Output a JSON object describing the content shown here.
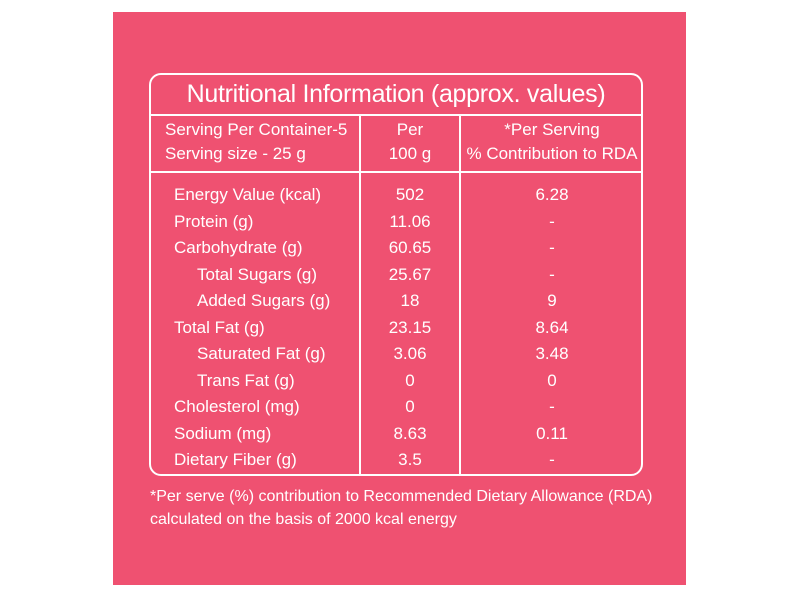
{
  "title": "Nutritional Information (approx. values)",
  "header": {
    "serving": [
      "Serving Per Container-5",
      "Serving size - 25 g"
    ],
    "per": [
      "Per",
      "100 g"
    ],
    "rda": [
      "*Per Serving",
      "% Contribution to RDA"
    ]
  },
  "nutrients": [
    {
      "name": "Energy Value (kcal)",
      "per_100g": 502,
      "rda": 6.28
    },
    {
      "name": "Protein (g)",
      "per_100g": 11.06,
      "rda": "-"
    },
    {
      "name": "Carbohydrate (g)",
      "per_100g": 60.65,
      "rda": "-",
      "sub": [
        {
          "name": "Total Sugars (g)",
          "per_100g": 25.67,
          "rda": "-"
        },
        {
          "name": "Added Sugars (g)",
          "per_100g": 18,
          "rda": 9
        }
      ]
    },
    {
      "name": "Total Fat (g)",
      "per_100g": 23.15,
      "rda": 8.64,
      "sub": [
        {
          "name": "Saturated Fat (g)",
          "per_100g": 3.06,
          "rda": 3.48
        },
        {
          "name": "Trans Fat (g)",
          "per_100g": 0,
          "rda": 0
        }
      ]
    },
    {
      "name": "Cholesterol (mg)",
      "per_100g": 0,
      "rda": "-"
    },
    {
      "name": "Sodium (mg)",
      "per_100g": 8.63,
      "rda": 0.11
    },
    {
      "name": "Dietary Fiber (g)",
      "per_100g": 3.5,
      "rda": "-"
    }
  ],
  "footnote": [
    "*Per serve (%) contribution to Recommended Dietary Allowance (RDA)",
    "calculated on the basis of 2000 kcal energy"
  ]
}
